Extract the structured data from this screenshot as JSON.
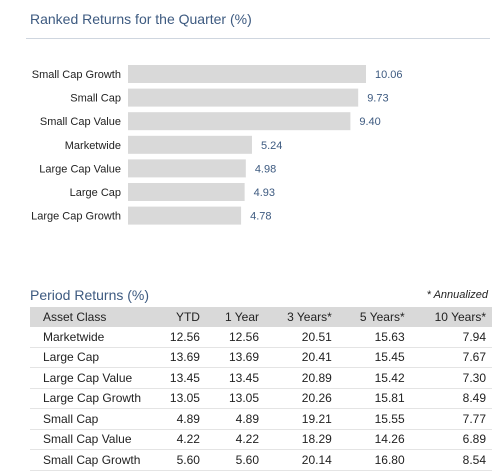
{
  "ranked": {
    "title": "Ranked Returns for the Quarter (%)"
  },
  "chart_data": {
    "type": "bar",
    "orientation": "horizontal",
    "title": "Ranked Returns for the Quarter (%)",
    "categories": [
      "Small Cap Growth",
      "Small Cap",
      "Small Cap Value",
      "Marketwide",
      "Large Cap Value",
      "Large Cap",
      "Large Cap Growth"
    ],
    "values": [
      10.06,
      9.73,
      9.4,
      5.24,
      4.98,
      4.93,
      4.78
    ],
    "value_labels": [
      "10.06",
      "9.73",
      "9.40",
      "5.24",
      "4.98",
      "4.93",
      "4.78"
    ],
    "xlim": [
      0,
      10.06
    ],
    "grid": false,
    "legend": "none",
    "colors": {
      "bar": "#d9d9d9",
      "value_label": "#3d5a80",
      "category_label": "#222222"
    }
  },
  "period": {
    "title": "Period Returns (%)",
    "note": "* Annualized",
    "headers": [
      "Asset Class",
      "YTD",
      "1 Year",
      "3 Years*",
      "5 Years*",
      "10 Years*"
    ],
    "rows": [
      [
        "Marketwide",
        "12.56",
        "12.56",
        "20.51",
        "15.63",
        "7.94"
      ],
      [
        "Large Cap",
        "13.69",
        "13.69",
        "20.41",
        "15.45",
        "7.67"
      ],
      [
        "Large Cap Value",
        "13.45",
        "13.45",
        "20.89",
        "15.42",
        "7.30"
      ],
      [
        "Large Cap Growth",
        "13.05",
        "13.05",
        "20.26",
        "15.81",
        "8.49"
      ],
      [
        "Small Cap",
        "4.89",
        "4.89",
        "19.21",
        "15.55",
        "7.77"
      ],
      [
        "Small Cap Value",
        "4.22",
        "4.22",
        "18.29",
        "14.26",
        "6.89"
      ],
      [
        "Small Cap Growth",
        "5.60",
        "5.60",
        "20.14",
        "16.80",
        "8.54"
      ]
    ]
  }
}
